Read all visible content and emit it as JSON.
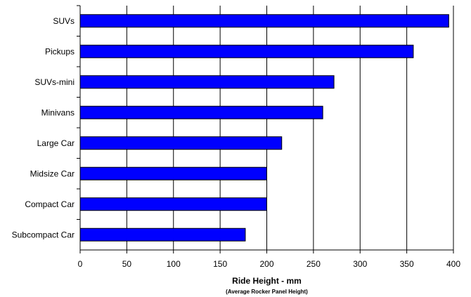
{
  "chart_data": {
    "type": "bar",
    "orientation": "horizontal",
    "categories": [
      "SUVs",
      "Pickups",
      "SUVs-mini",
      "Minivans",
      "Large Car",
      "Midsize Car",
      "Compact Car",
      "Subcompact Car"
    ],
    "values": [
      395,
      357,
      272,
      260,
      216,
      200,
      200,
      177
    ],
    "xlabel": "Ride Height - mm",
    "xsublabel": "(Average Rocker Panel Height)",
    "ylabel": "",
    "xlim": [
      0,
      400
    ],
    "xticks": [
      "0",
      "50",
      "100",
      "150",
      "200",
      "250",
      "300",
      "350",
      "400"
    ],
    "grid": "vertical",
    "bar_color": "#0000FF",
    "bar_edge_color": "#000000"
  }
}
